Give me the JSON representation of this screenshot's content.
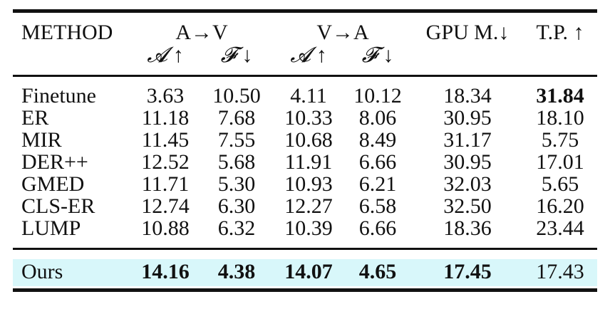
{
  "table": {
    "header": {
      "method": "METHOD",
      "group_av": "A→V",
      "group_va": "V→A",
      "gpu": "GPU M.↓",
      "tp": "T.P. ↑",
      "sub_a1": "𝓐 ↑",
      "sub_f1": "𝓕 ↓",
      "sub_a2": "𝓐 ↑",
      "sub_f2": "𝓕 ↓"
    },
    "rows": [
      {
        "method": "Finetune",
        "av_a": "3.63",
        "av_f": "10.50",
        "va_a": "4.11",
        "va_f": "10.12",
        "gpu": "18.34",
        "tp": "31.84"
      },
      {
        "method": "ER",
        "av_a": "11.18",
        "av_f": "7.68",
        "va_a": "10.33",
        "va_f": "8.06",
        "gpu": "30.95",
        "tp": "18.10"
      },
      {
        "method": "MIR",
        "av_a": "11.45",
        "av_f": "7.55",
        "va_a": "10.68",
        "va_f": "8.49",
        "gpu": "31.17",
        "tp": "5.75"
      },
      {
        "method": "DER++",
        "av_a": "12.52",
        "av_f": "5.68",
        "va_a": "11.91",
        "va_f": "6.66",
        "gpu": "30.95",
        "tp": "17.01"
      },
      {
        "method": "GMED",
        "av_a": "11.71",
        "av_f": "5.30",
        "va_a": "10.93",
        "va_f": "6.21",
        "gpu": "32.03",
        "tp": "5.65"
      },
      {
        "method": "CLS-ER",
        "av_a": "12.74",
        "av_f": "6.30",
        "va_a": "12.27",
        "va_f": "6.58",
        "gpu": "32.50",
        "tp": "16.20"
      },
      {
        "method": "LUMP",
        "av_a": "10.88",
        "av_f": "6.32",
        "va_a": "10.39",
        "va_f": "6.66",
        "gpu": "18.36",
        "tp": "23.44"
      }
    ],
    "ours": {
      "method": "Ours",
      "av_a": "14.16",
      "av_f": "4.38",
      "va_a": "14.07",
      "va_f": "4.65",
      "gpu": "17.45",
      "tp": "17.43"
    },
    "highlight_color": "#d8f7fa"
  }
}
